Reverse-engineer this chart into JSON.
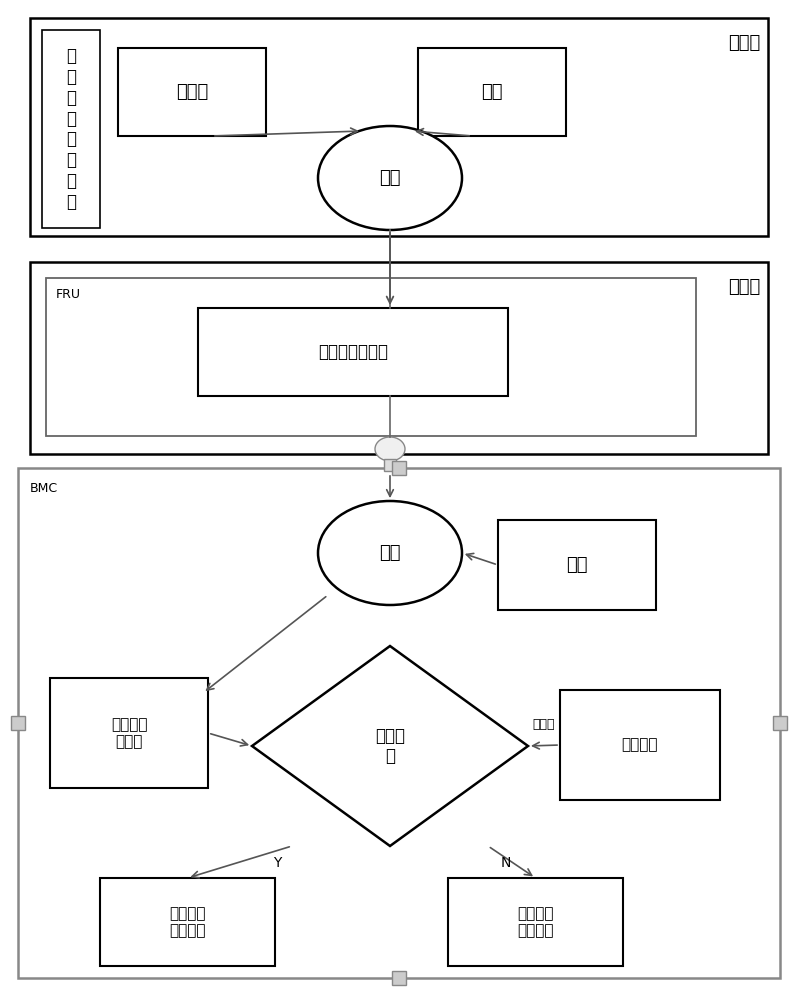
{
  "bg_color": "#ffffff",
  "fig_width": 7.99,
  "fig_height": 10.0,
  "label_client": "客户端",
  "label_server": "服务器",
  "label_bmc": "BMC",
  "label_fru": "FRU",
  "label_leftbox": "基\n准\n值\n及\n正\n措\n模\n块",
  "label_jizhun": "基准值",
  "label_miyao_client": "密钥",
  "label_jiami": "加密",
  "label_jiamihoudejizhunji": "加密后的基准值",
  "label_jiemi": "解密",
  "label_miyao_server": "密钥",
  "label_jiemihoudejizhunji": "解密后的\n基准值",
  "label_yanzhen": "验证模\n块",
  "label_dulimokuai": "度里模块",
  "label_chenggong": "认证成功\n继续操作",
  "label_shibai": "认证失败\n关机操作",
  "label_dulizhi": "度量值",
  "label_Y": "Y",
  "label_N": "N"
}
